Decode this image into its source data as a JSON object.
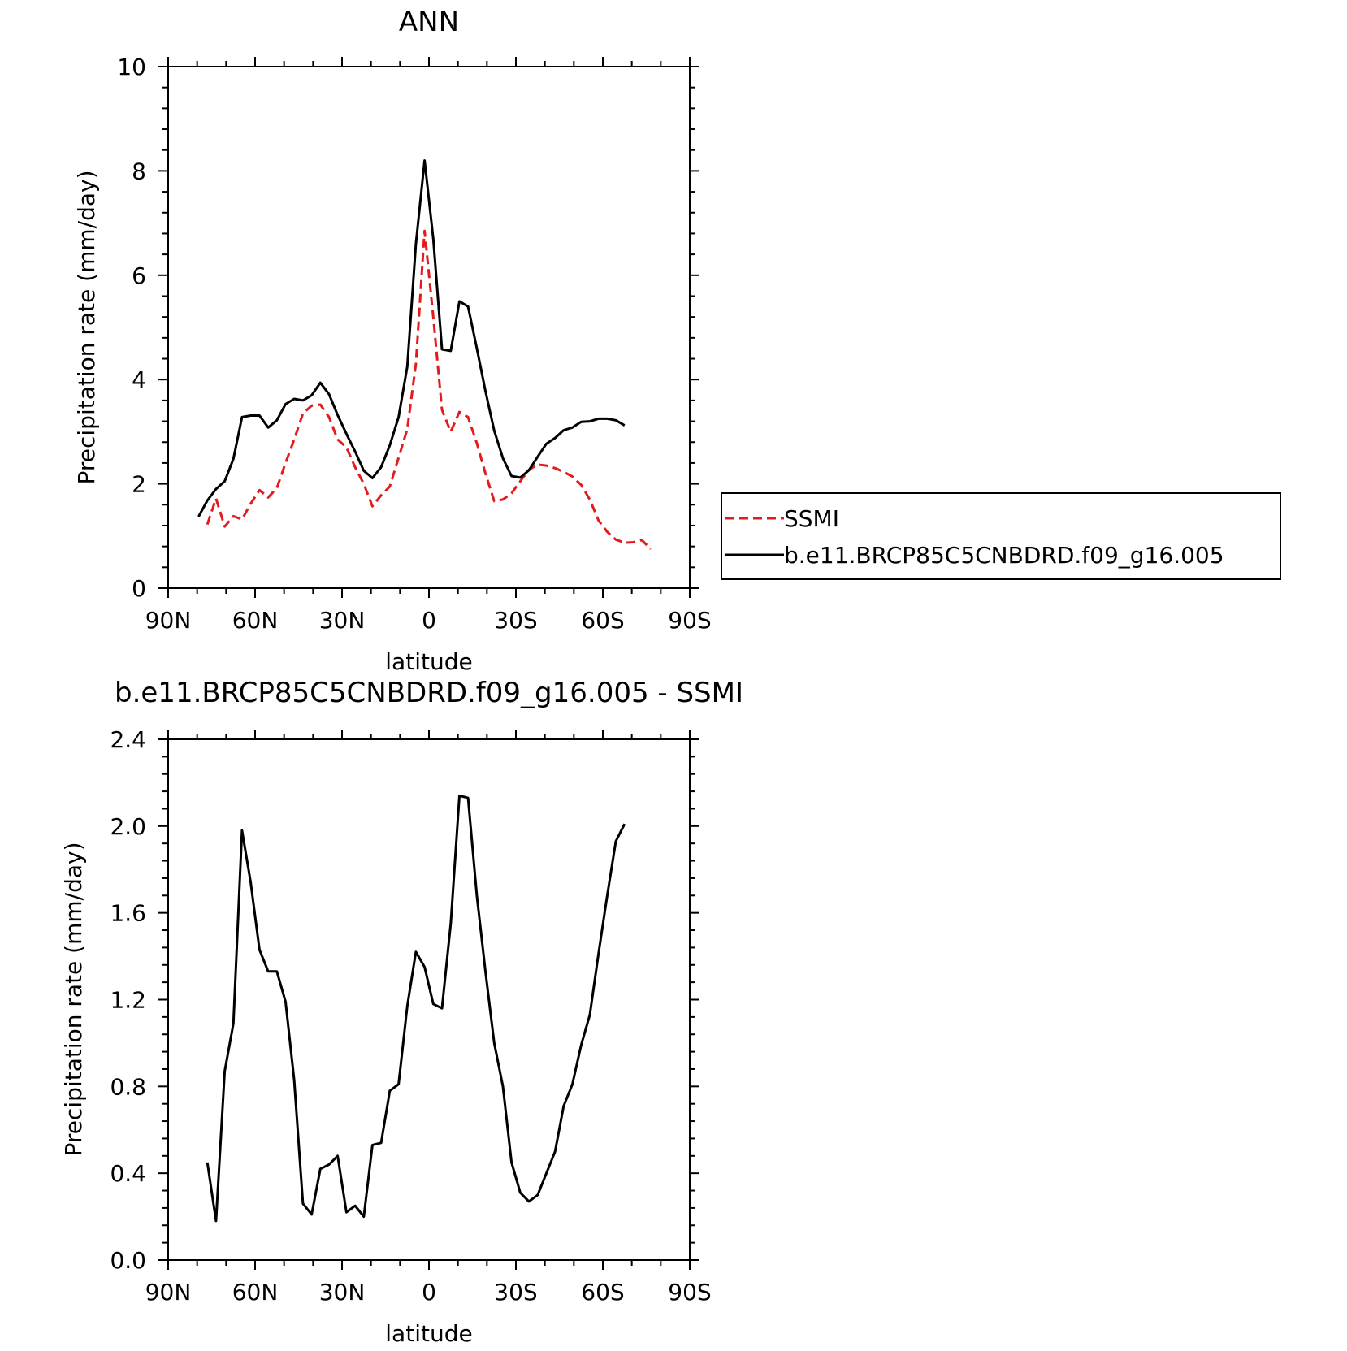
{
  "chart_data": [
    {
      "type": "line",
      "title": "ANN",
      "xlabel": "latitude",
      "ylabel": "Precipitation rate (mm/day)",
      "xlim": [
        90,
        -90
      ],
      "ylim": [
        0,
        10
      ],
      "xticks": [
        90,
        60,
        30,
        0,
        -30,
        -60,
        -90
      ],
      "xticklabels": [
        "90N",
        "60N",
        "30N",
        "0",
        "30S",
        "60S",
        "90S"
      ],
      "yticks": [
        0,
        2,
        4,
        6,
        8,
        10
      ],
      "yticklabels": [
        "0",
        "2",
        "4",
        "6",
        "8",
        "10"
      ],
      "grid": false,
      "legend_position": "right",
      "series": [
        {
          "name": "SSMI",
          "color": "#e41a1c",
          "style": "dashed",
          "x": [
            76.5,
            73.5,
            70.5,
            67.5,
            64.5,
            61.5,
            58.5,
            55.5,
            52.5,
            49.5,
            46.5,
            43.5,
            40.5,
            37.5,
            34.5,
            31.5,
            28.5,
            25.5,
            22.5,
            19.5,
            16.5,
            13.5,
            10.5,
            7.5,
            4.5,
            1.5,
            -1.5,
            -4.5,
            -7.5,
            -10.5,
            -13.5,
            -16.5,
            -19.5,
            -22.5,
            -25.5,
            -28.5,
            -31.5,
            -34.5,
            -37.5,
            -40.5,
            -43.5,
            -46.5,
            -49.5,
            -52.5,
            -55.5,
            -58.5,
            -61.5,
            -64.5,
            -67.5,
            -70.5,
            -73.5,
            -76.5
          ],
          "values": [
            1.22,
            1.72,
            1.18,
            1.38,
            1.32,
            1.62,
            1.88,
            1.74,
            1.92,
            2.4,
            2.85,
            3.35,
            3.5,
            3.52,
            3.28,
            2.85,
            2.7,
            2.32,
            2.0,
            1.57,
            1.78,
            1.95,
            2.5,
            3.05,
            4.3,
            6.85,
            5.2,
            3.42,
            3.0,
            3.38,
            3.28,
            2.78,
            2.2,
            1.67,
            1.7,
            1.82,
            2.05,
            2.27,
            2.37,
            2.35,
            2.3,
            2.23,
            2.14,
            1.98,
            1.7,
            1.3,
            1.08,
            0.93,
            0.87,
            0.88,
            0.92,
            0.75
          ]
        },
        {
          "name": "b.e11.BRCP85C5CNBDRD.f09_g16.005",
          "color": "#000000",
          "style": "solid",
          "x": [
            79.5,
            76.5,
            73.5,
            70.5,
            67.5,
            64.5,
            61.5,
            58.5,
            55.5,
            52.5,
            49.5,
            46.5,
            43.5,
            40.5,
            37.5,
            34.5,
            31.5,
            28.5,
            25.5,
            22.5,
            19.5,
            16.5,
            13.5,
            10.5,
            7.5,
            4.5,
            1.5,
            -1.5,
            -4.5,
            -7.5,
            -10.5,
            -13.5,
            -16.5,
            -19.5,
            -22.5,
            -25.5,
            -28.5,
            -31.5,
            -34.5,
            -37.5,
            -40.5,
            -43.5,
            -46.5,
            -49.5,
            -52.5,
            -55.5,
            -58.5,
            -61.5,
            -64.5,
            -67.5
          ],
          "values": [
            1.37,
            1.68,
            1.9,
            2.05,
            2.48,
            3.28,
            3.31,
            3.31,
            3.08,
            3.22,
            3.53,
            3.63,
            3.6,
            3.7,
            3.94,
            3.72,
            3.32,
            2.96,
            2.62,
            2.25,
            2.11,
            2.32,
            2.74,
            3.28,
            4.25,
            6.6,
            8.2,
            6.7,
            4.58,
            4.55,
            5.5,
            5.4,
            4.6,
            3.78,
            3.02,
            2.49,
            2.15,
            2.12,
            2.26,
            2.52,
            2.77,
            2.88,
            3.03,
            3.08,
            3.19,
            3.2,
            3.25,
            3.25,
            3.22,
            3.12
          ]
        }
      ]
    },
    {
      "type": "line",
      "title": "b.e11.BRCP85C5CNBDRD.f09_g16.005 - SSMI",
      "xlabel": "latitude",
      "ylabel": "Precipitation rate (mm/day)",
      "xlim": [
        90,
        -90
      ],
      "ylim": [
        0.0,
        2.4
      ],
      "xticks": [
        90,
        60,
        30,
        0,
        -30,
        -60,
        -90
      ],
      "xticklabels": [
        "90N",
        "60N",
        "30N",
        "0",
        "30S",
        "60S",
        "90S"
      ],
      "yticks": [
        0.0,
        0.4,
        0.8,
        1.2,
        1.6,
        2.0,
        2.4
      ],
      "yticklabels": [
        "0.0",
        "0.4",
        "0.8",
        "1.2",
        "1.6",
        "2.0",
        "2.4"
      ],
      "grid": false,
      "series": [
        {
          "color": "#000000",
          "style": "solid",
          "x": [
            76.5,
            73.5,
            70.5,
            67.5,
            64.5,
            61.5,
            58.5,
            55.5,
            52.5,
            49.5,
            46.5,
            43.5,
            40.5,
            37.5,
            34.5,
            31.5,
            28.5,
            25.5,
            22.5,
            19.5,
            16.5,
            13.5,
            10.5,
            7.5,
            4.5,
            1.5,
            -1.5,
            -4.5,
            -7.5,
            -10.5,
            -13.5,
            -16.5,
            -19.5,
            -22.5,
            -25.5,
            -28.5,
            -31.5,
            -34.5,
            -37.5,
            -40.5,
            -43.5,
            -46.5,
            -49.5,
            -52.5,
            -55.5,
            -58.5,
            -61.5,
            -64.5,
            -67.5
          ],
          "values": [
            0.45,
            0.18,
            0.87,
            1.09,
            1.98,
            1.74,
            1.43,
            1.33,
            1.33,
            1.19,
            0.83,
            0.26,
            0.21,
            0.42,
            0.44,
            0.48,
            0.22,
            0.25,
            0.2,
            0.53,
            0.54,
            0.78,
            0.81,
            1.17,
            1.42,
            1.35,
            1.18,
            1.16,
            1.55,
            2.14,
            2.13,
            1.68,
            1.33,
            1.0,
            0.8,
            0.45,
            0.31,
            0.27,
            0.3,
            0.4,
            0.5,
            0.71,
            0.81,
            0.99,
            1.13,
            1.41,
            1.68,
            1.93,
            2.01
          ]
        }
      ]
    }
  ]
}
